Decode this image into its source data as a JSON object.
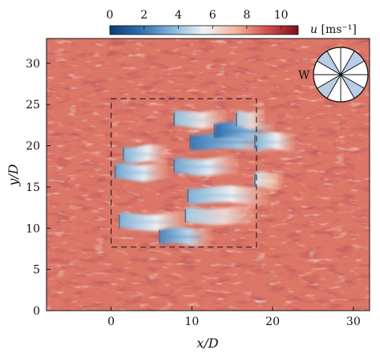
{
  "chart_data": {
    "type": "heatmap",
    "field": "u",
    "xlabel": "x/D",
    "ylabel": "y/D",
    "xlim": [
      -8,
      32
    ],
    "ylim": [
      0,
      33
    ],
    "xticks": [
      0,
      10,
      20,
      30
    ],
    "yticks": [
      0,
      5,
      10,
      15,
      20,
      25,
      30
    ],
    "colorbar": {
      "label": "u [ms⁻¹]",
      "label_symbol": "u",
      "label_unit": "[ms⁻¹]",
      "range": [
        0,
        11
      ],
      "ticks": [
        0,
        2,
        4,
        6,
        8,
        10
      ],
      "colors": [
        "#0d3d7a",
        "#2f6fb1",
        "#87b8da",
        "#eef4f7",
        "#f2b59b",
        "#d0524a",
        "#7f0e1c"
      ]
    },
    "ambient_speed": 8.5,
    "farm_box": {
      "x": [
        0,
        18
      ],
      "y": [
        7.7,
        25.7
      ]
    },
    "turbines": [
      {
        "x": 1.5,
        "y": 19.0,
        "y0": 18.2,
        "y1": 19.8,
        "wake_length": 5.5,
        "deficit": 0.7
      },
      {
        "x": 0.5,
        "y": 16.8,
        "y0": 16.0,
        "y1": 17.6,
        "wake_length": 6.5,
        "deficit": 0.75
      },
      {
        "x": 1.0,
        "y": 10.8,
        "y0": 10.0,
        "y1": 11.6,
        "wake_length": 8.5,
        "deficit": 0.7
      },
      {
        "x": 6.0,
        "y": 9.0,
        "y0": 8.2,
        "y1": 9.8,
        "wake_length": 6.5,
        "deficit": 0.85
      },
      {
        "x": 7.8,
        "y": 23.2,
        "y0": 22.4,
        "y1": 24.0,
        "wake_length": 6.5,
        "deficit": 0.65
      },
      {
        "x": 7.8,
        "y": 17.5,
        "y0": 16.7,
        "y1": 18.3,
        "wake_length": 8.0,
        "deficit": 0.75
      },
      {
        "x": 9.8,
        "y": 20.5,
        "y0": 19.7,
        "y1": 21.3,
        "wake_length": 11.0,
        "deficit": 0.9
      },
      {
        "x": 9.5,
        "y": 14.0,
        "y0": 13.2,
        "y1": 14.8,
        "wake_length": 10.0,
        "deficit": 0.7
      },
      {
        "x": 9.2,
        "y": 11.5,
        "y0": 10.7,
        "y1": 12.3,
        "wake_length": 9.0,
        "deficit": 0.6
      },
      {
        "x": 12.8,
        "y": 21.8,
        "y0": 21.0,
        "y1": 22.6,
        "wake_length": 7.5,
        "deficit": 0.95
      },
      {
        "x": 15.5,
        "y": 23.2,
        "y0": 22.4,
        "y1": 24.0,
        "wake_length": 3.5,
        "deficit": 0.6
      },
      {
        "x": 17.8,
        "y": 20.5,
        "y0": 19.7,
        "y1": 21.3,
        "wake_length": 5.0,
        "deficit": 0.7
      },
      {
        "x": 17.8,
        "y": 15.8,
        "y0": 15.0,
        "y1": 16.6,
        "wake_length": 3.5,
        "deficit": 0.5
      }
    ],
    "wind_rose": {
      "label": "W",
      "sectors": 12,
      "highlighted_sectors": [
        1,
        4,
        7,
        10
      ],
      "highlight_color": "#b9cde4"
    }
  }
}
